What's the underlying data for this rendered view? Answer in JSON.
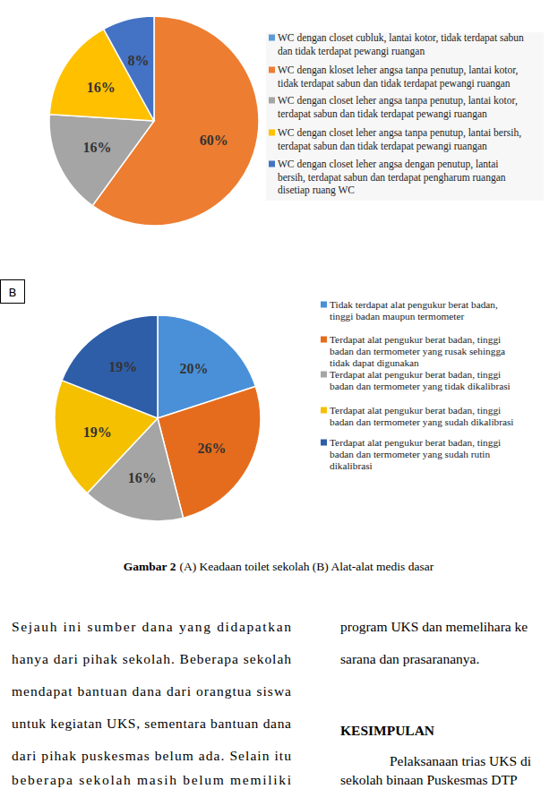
{
  "chart_data": [
    {
      "type": "pie",
      "categories": [
        "WC dengan closet cubluk, lantai kotor, tidak terdapat sabun\ndan tidak terdapat pewangi ruangan",
        "WC dengan kloset leher angsa tanpa penutup, lantai kotor,\ntidak terdapat sabun dan tidak terdapat pewangi ruangan",
        "WC dengan closet leher angsa tanpa penutup, lantai kotor,\nterdapat sabun dan tidak terdapat pewangi ruangan",
        "WC dengan closet leher angsa tanpa penutup, lantai bersih,\nterdapat sabun dan tidak terdapat pewangi ruangan",
        "WC dengan closet leher angsa dengan penutup, lantai\nbersih, terdapat sabun dan terdapat pengharum ruangan\ndisetiap ruang WC"
      ],
      "values": [
        0,
        60,
        16,
        16,
        8
      ],
      "value_labels": [
        null,
        "60%",
        "16%",
        "16%",
        "8%"
      ],
      "colors": [
        "#5b9bd5",
        "#ed7d31",
        "#a5a5a5",
        "#ffc000",
        "#4472c4"
      ],
      "data_labels": true,
      "legend": "right"
    },
    {
      "type": "pie",
      "panel_label": "B",
      "categories": [
        "Tidak terdapat alat pengukur berat badan,\ntinggi badan maupun termometer",
        "Terdapat alat pengukur berat badan, tinggi\nbadan dan termometer yang rusak sehingga\ntidak dapat digunakan",
        "Terdapat alat pengukur berat badan, tinggi\nbadan dan termometer yang tidak dikalibrasi",
        "Terdapat alat pengukur berat badan, tinggi\nbadan dan termometer yang sudah dikalibrasi",
        "Terdapat alat pengukur berat badan, tinggi\nbadan dan termometer yang sudah rutin\ndikalibrasi"
      ],
      "values": [
        20,
        26,
        16,
        19,
        19
      ],
      "value_labels": [
        "20%",
        "26%",
        "16%",
        "19%",
        "19%"
      ],
      "colors": [
        "#4a90d9",
        "#e66c1d",
        "#a5a5a5",
        "#f5c000",
        "#2e5ea8"
      ],
      "data_labels": true,
      "legend": "right"
    }
  ],
  "caption": {
    "label": "Gambar 2",
    "text": "(A) Keadaan toilet sekolah (B) Alat-alat medis dasar"
  },
  "body": {
    "left_column": [
      "Sejauh ini sumber dana yang didapatkan",
      "hanya dari pihak sekolah. Beberapa sekolah",
      "mendapat bantuan dana dari orangtua siswa",
      "untuk kegiatan UKS, sementara bantuan dana",
      "dari pihak puskesmas belum ada. Selain itu",
      "beberapa sekolah masih belum memiliki"
    ],
    "right_column": {
      "lines_before": [
        "program UKS dan memelihara ke",
        "sarana dan prasarananya."
      ],
      "heading": "KESIMPULAN",
      "lines_after": [
        "Pelaksanaan trias UKS di",
        "sekolah binaan Puskesmas DTP"
      ]
    }
  }
}
